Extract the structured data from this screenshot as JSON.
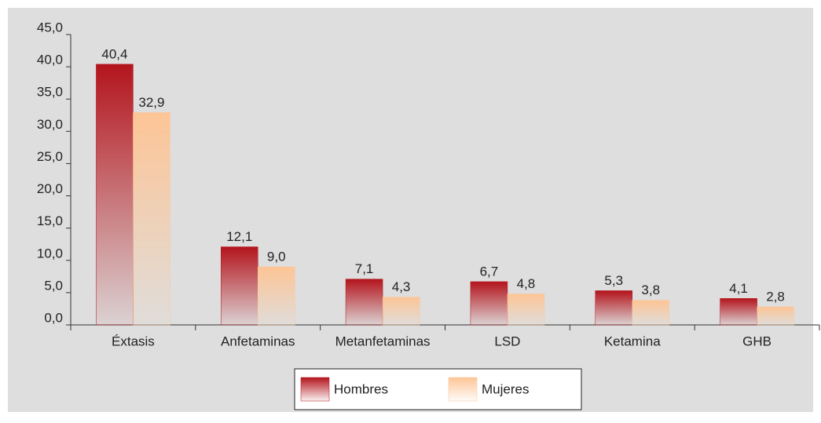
{
  "chart_data": {
    "type": "bar",
    "categories": [
      "Éxtasis",
      "Anfetaminas",
      "Metanfetaminas",
      "LSD",
      "Ketamina",
      "GHB"
    ],
    "series": [
      {
        "name": "Hombres",
        "color": "#b3141c",
        "values": [
          40.4,
          12.1,
          7.1,
          6.7,
          5.3,
          4.1
        ],
        "value_labels": [
          "40,4",
          "12,1",
          "7,1",
          "6,7",
          "5,3",
          "4,1"
        ]
      },
      {
        "name": "Mujeres",
        "color": "#fdc596",
        "values": [
          32.9,
          9.0,
          4.3,
          4.8,
          3.8,
          2.8
        ],
        "value_labels": [
          "32,9",
          "9,0",
          "4,3",
          "4,8",
          "3,8",
          "2,8"
        ]
      }
    ],
    "ylim": [
      0,
      45
    ],
    "yticks": [
      {
        "value": 0,
        "label": "0,0"
      },
      {
        "value": 5,
        "label": "5,0"
      },
      {
        "value": 10,
        "label": "10,0"
      },
      {
        "value": 15,
        "label": "15,0"
      },
      {
        "value": 20,
        "label": "20,0"
      },
      {
        "value": 25,
        "label": "25,0"
      },
      {
        "value": 30,
        "label": "30,0"
      },
      {
        "value": 35,
        "label": "35,0"
      },
      {
        "value": 40,
        "label": "40,0"
      },
      {
        "value": 45,
        "label": "45,0"
      }
    ],
    "legend": "bottom"
  }
}
